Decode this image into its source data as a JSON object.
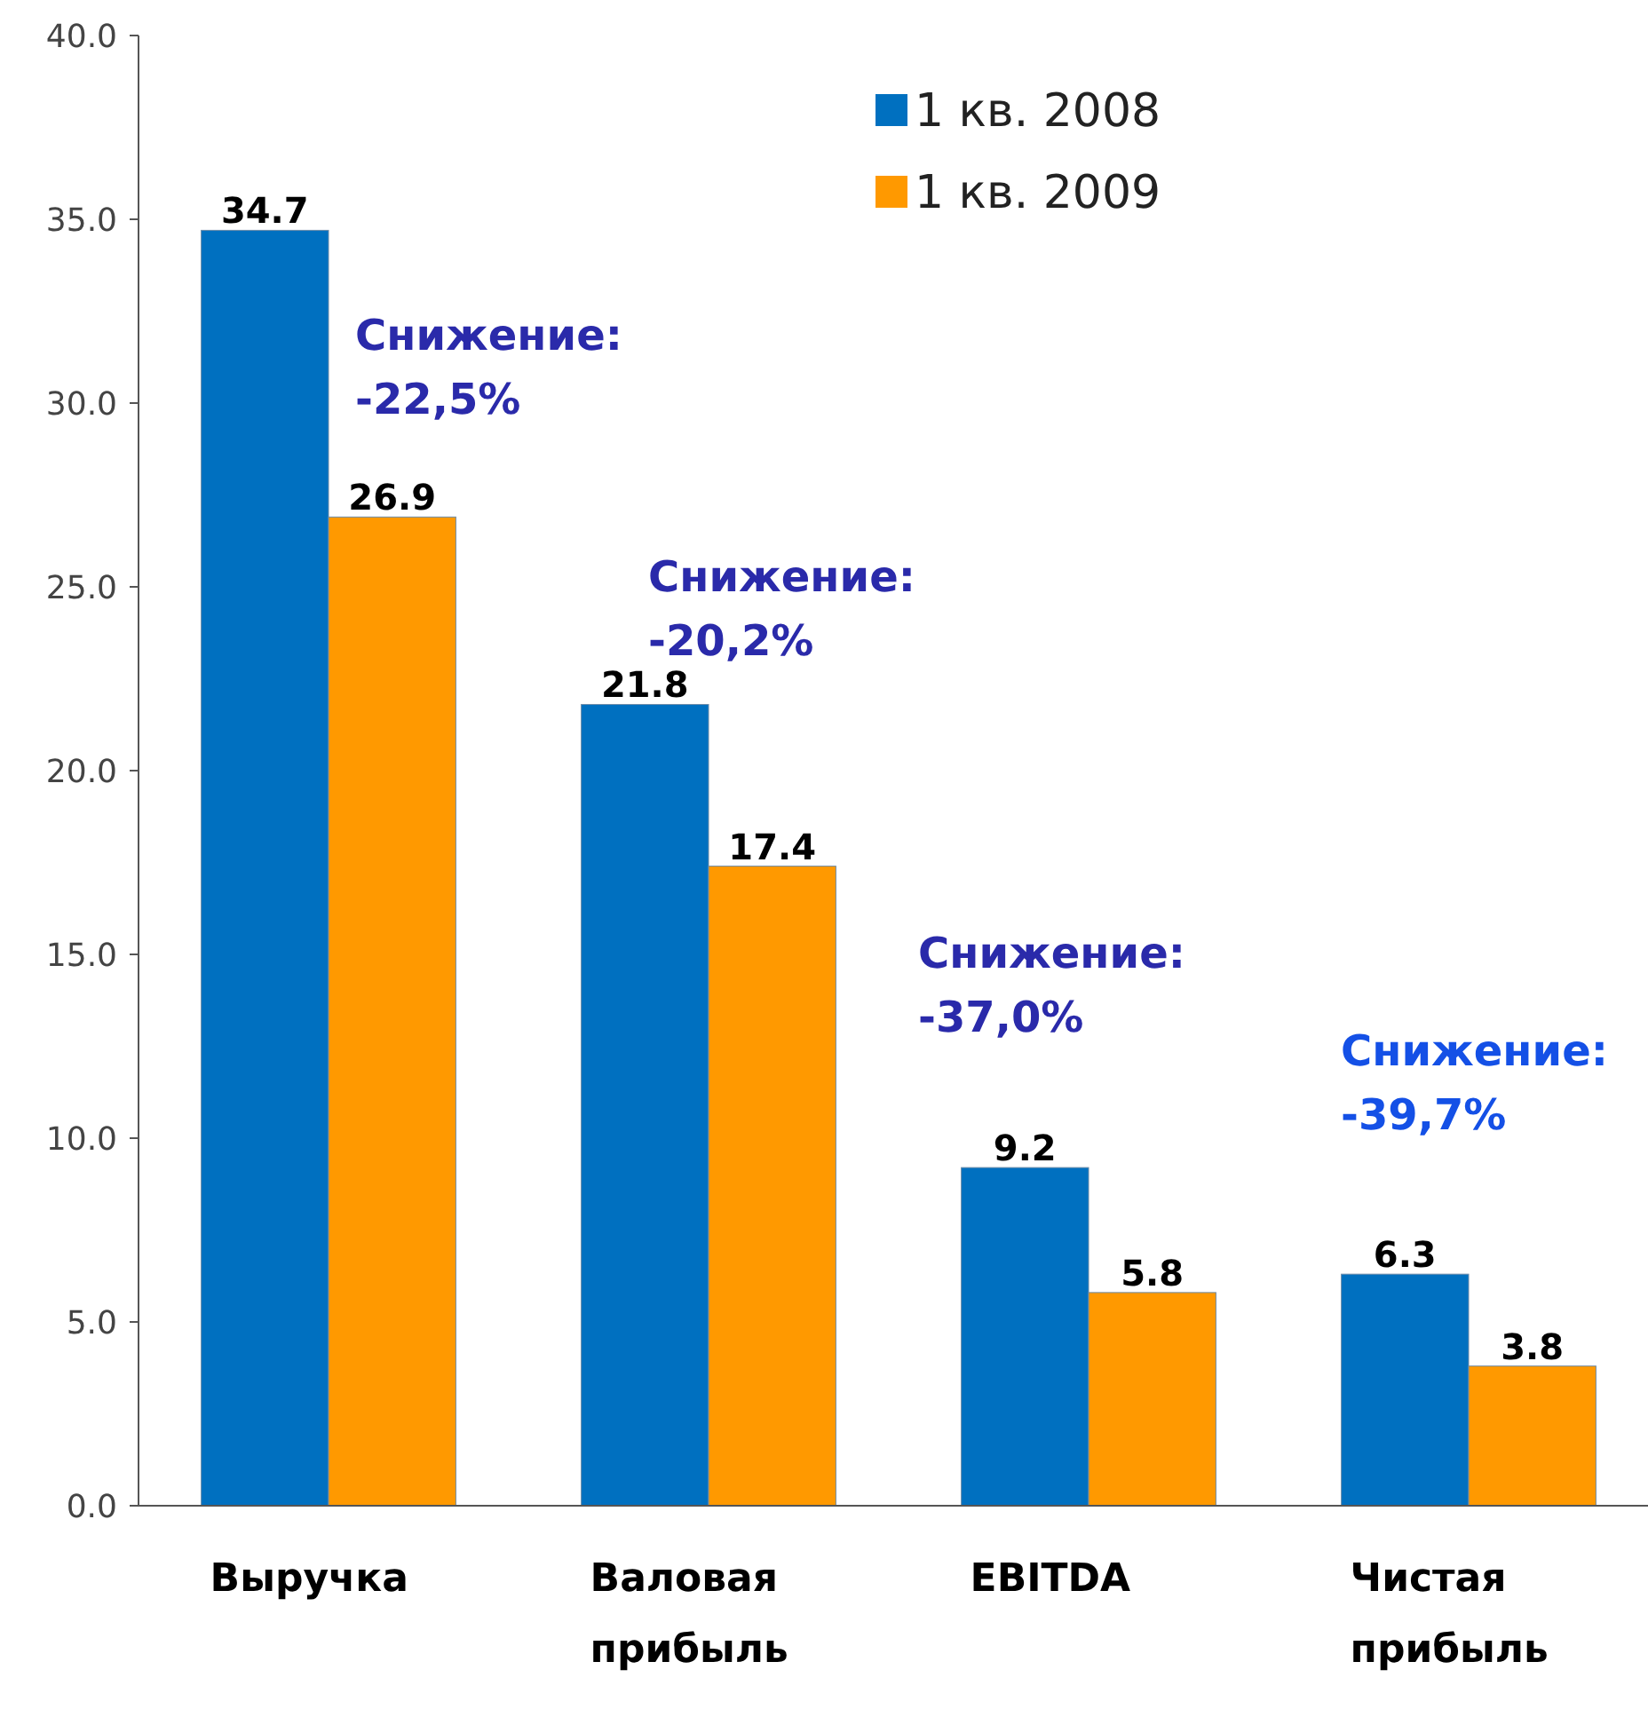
{
  "chart_data": {
    "type": "bar",
    "categories": [
      "Выручка",
      "Валовая прибыль",
      "EBITDA",
      "Чистая прибыль"
    ],
    "series": [
      {
        "name": "1 кв. 2008",
        "color": "#0070c0",
        "values": [
          34.7,
          21.8,
          9.2,
          6.3
        ]
      },
      {
        "name": "1 кв. 2009",
        "color": "#ff9900",
        "values": [
          26.9,
          17.4,
          5.8,
          3.8
        ]
      }
    ],
    "ylim": [
      0,
      40
    ],
    "yticks": [
      {
        "value": 0,
        "label": "0.0"
      },
      {
        "value": 5,
        "label": "5.0"
      },
      {
        "value": 10,
        "label": "10.0"
      },
      {
        "value": 15,
        "label": "15.0"
      },
      {
        "value": 20,
        "label": "20.0"
      },
      {
        "value": 25,
        "label": "25.0"
      },
      {
        "value": 30,
        "label": "30.0"
      },
      {
        "value": 35,
        "label": "35.0"
      },
      {
        "value": 40,
        "label": "40.0"
      }
    ],
    "data_labels": true,
    "legend": "top",
    "grid": false,
    "annotations": [
      "Снижение: -22,5%",
      "Снижение: -20,2%",
      "Снижение: -37,0%",
      "Снижение: -39,7%"
    ]
  }
}
